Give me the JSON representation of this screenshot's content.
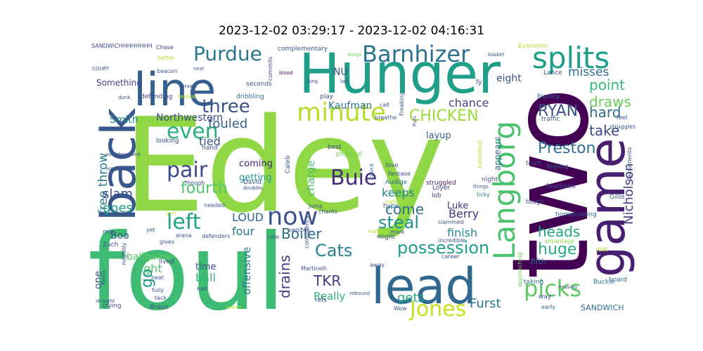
{
  "chart_data": {
    "type": "wordcloud",
    "title": "2023-12-02 03:29:17 - 2023-12-02 04:16:31",
    "background": "#ffffff",
    "words": [
      {
        "text": "Edey",
        "weight": 100,
        "color": "#8fd744"
      },
      {
        "text": "foul",
        "weight": 80,
        "color": "#3fbc73"
      },
      {
        "text": "two",
        "weight": 78,
        "color": "#440154"
      },
      {
        "text": "Hunger",
        "weight": 52,
        "color": "#1f9e89"
      },
      {
        "text": "game",
        "weight": 48,
        "color": "#481f70"
      },
      {
        "text": "lead",
        "weight": 46,
        "color": "#31688e"
      },
      {
        "text": "line",
        "weight": 44,
        "color": "#355f8d"
      },
      {
        "text": "back",
        "weight": 42,
        "color": "#39568c"
      },
      {
        "text": "Langborg",
        "weight": 34,
        "color": "#4ac16d"
      },
      {
        "text": "splits",
        "weight": 30,
        "color": "#1f9e89"
      },
      {
        "text": "minute",
        "weight": 26,
        "color": "#b5de2b"
      },
      {
        "text": "Barnhizer",
        "weight": 25,
        "color": "#2c728e"
      },
      {
        "text": "picks",
        "weight": 24,
        "color": "#5ec962"
      },
      {
        "text": "Jones",
        "weight": 24,
        "color": "#c8e020"
      },
      {
        "text": "now",
        "weight": 23,
        "color": "#3b528b"
      },
      {
        "text": "Purdue",
        "weight": 21,
        "color": "#2a788e"
      },
      {
        "text": "left",
        "weight": 21,
        "color": "#20a486"
      },
      {
        "text": "even",
        "weight": 21,
        "color": "#2ab07f"
      },
      {
        "text": "pair",
        "weight": 20,
        "color": "#3e4989"
      },
      {
        "text": "Buie",
        "weight": 20,
        "color": "#472d7b"
      },
      {
        "text": "three",
        "weight": 19,
        "color": "#3b528b"
      },
      {
        "text": "possession",
        "weight": 18,
        "color": "#1f9e89"
      },
      {
        "text": "Nicholson",
        "weight": 17,
        "color": "#433e85"
      },
      {
        "text": "free throw",
        "weight": 16,
        "color": "#287c8e"
      },
      {
        "text": "fourth",
        "weight": 16,
        "color": "#52c569"
      },
      {
        "text": "Cats",
        "weight": 16,
        "color": "#26828e"
      },
      {
        "text": "CHICKEN",
        "weight": 15,
        "color": "#9bd93c"
      },
      {
        "text": "RYAN",
        "weight": 15,
        "color": "#3b528b"
      },
      {
        "text": "Preston",
        "weight": 15,
        "color": "#2d708e"
      },
      {
        "text": "huge",
        "weight": 15,
        "color": "#25ab82"
      },
      {
        "text": "steal",
        "weight": 15,
        "color": "#21918c"
      },
      {
        "text": "TKR",
        "weight": 15,
        "color": "#443983"
      },
      {
        "text": "drains",
        "weight": 15,
        "color": "#443a83"
      },
      {
        "text": "draws",
        "weight": 15,
        "color": "#6ccd5a"
      },
      {
        "text": "point",
        "weight": 15,
        "color": "#35b779"
      },
      {
        "text": "Boiler",
        "weight": 14,
        "color": "#2f6c8e"
      },
      {
        "text": "come",
        "weight": 14,
        "color": "#2e6e8e"
      },
      {
        "text": "take",
        "weight": 14,
        "color": "#3e4a89"
      },
      {
        "text": "hard",
        "weight": 14,
        "color": "#2e6f8e"
      },
      {
        "text": "heads",
        "weight": 14,
        "color": "#21a685"
      },
      {
        "text": "go",
        "weight": 14,
        "color": "#1f968b"
      },
      {
        "text": "slam",
        "weight": 13,
        "color": "#3d4d8a"
      },
      {
        "text": "goes",
        "weight": 13,
        "color": "#1fa088"
      },
      {
        "text": "Furst",
        "weight": 13,
        "color": "#2a778e"
      },
      {
        "text": "gets",
        "weight": 13,
        "color": "#22a884"
      },
      {
        "text": "fouled",
        "weight": 13,
        "color": "#355f8d"
      },
      {
        "text": "misses",
        "weight": 13,
        "color": "#2f6b8e"
      },
      {
        "text": "charge",
        "weight": 12,
        "color": "#4ac16d"
      },
      {
        "text": "tied",
        "weight": 12,
        "color": "#3b528b"
      },
      {
        "text": "chance",
        "weight": 12,
        "color": "#3f4788"
      },
      {
        "text": "keeps",
        "weight": 12,
        "color": "#25848e"
      },
      {
        "text": "four",
        "weight": 12,
        "color": "#2a788e"
      },
      {
        "text": "LOUD",
        "weight": 12,
        "color": "#31668e"
      },
      {
        "text": "Really",
        "weight": 12,
        "color": "#2db27d"
      },
      {
        "text": "finish",
        "weight": 12,
        "color": "#238a8d"
      },
      {
        "text": "Berry",
        "weight": 12,
        "color": "#453581"
      },
      {
        "text": "right",
        "weight": 11,
        "color": "#4ec36b"
      },
      {
        "text": "ball",
        "weight": 11,
        "color": "#35b779"
      },
      {
        "text": "offensive",
        "weight": 11,
        "color": "#287d8e"
      },
      {
        "text": "eight",
        "weight": 11,
        "color": "#3b528b"
      },
      {
        "text": "NU",
        "weight": 11,
        "color": "#39568c"
      },
      {
        "text": "Kaufman",
        "weight": 11,
        "color": "#2c738e"
      },
      {
        "text": "Smith",
        "weight": 11,
        "color": "#24868e"
      },
      {
        "text": "Northwestern",
        "weight": 10,
        "color": "#3e4a89"
      },
      {
        "text": "coming",
        "weight": 10,
        "color": "#482173"
      },
      {
        "text": "getting",
        "weight": 10,
        "color": "#1e9b8a"
      },
      {
        "text": "Boo",
        "weight": 10,
        "color": "#3a548c"
      },
      {
        "text": "one",
        "weight": 10,
        "color": "#39568c"
      },
      {
        "text": "Luke",
        "weight": 10,
        "color": "#472f7d"
      },
      {
        "text": "layup",
        "weight": 10,
        "color": "#355e8d"
      },
      {
        "text": "ballgame",
        "weight": 10,
        "color": "#5ec962"
      },
      {
        "text": "time",
        "weight": 10,
        "color": "#3c4f8a"
      },
      {
        "text": "Something",
        "weight": 9,
        "color": "#404688"
      },
      {
        "text": "SANDWICH",
        "weight": 9,
        "color": "#2f6c8e"
      },
      {
        "text": "fifth",
        "weight": 9,
        "color": "#2e6e8e"
      },
      {
        "text": "appears",
        "weight": 9,
        "color": "#2d708e"
      },
      {
        "text": "one",
        "weight": 1,
        "color": "#ffffff"
      },
      {
        "text": "Lance",
        "weight": 7,
        "color": "#3f4788"
      },
      {
        "text": "Frankly",
        "weight": 7,
        "color": "#31688e"
      },
      {
        "text": "traffic",
        "weight": 7,
        "color": "#3b528b"
      },
      {
        "text": "team",
        "weight": 7,
        "color": "#3b528b"
      },
      {
        "text": "feeling",
        "weight": 7,
        "color": "#33638d"
      },
      {
        "text": "Seatbelts",
        "weight": 7,
        "color": "#3e4989"
      },
      {
        "text": "tough",
        "weight": 7,
        "color": "#3e4989"
      },
      {
        "text": "homecoming",
        "weight": 7,
        "color": "#2f6c8e"
      },
      {
        "text": "advantage",
        "weight": 6,
        "color": "#8fd744"
      },
      {
        "text": "Buckle",
        "weight": 7,
        "color": "#2d708e"
      },
      {
        "text": "board",
        "weight": 7,
        "color": "#31688e"
      },
      {
        "text": "rest",
        "weight": 7,
        "color": "#b5de2b"
      },
      {
        "text": "taking",
        "weight": 7,
        "color": "#2e6e8e"
      },
      {
        "text": "way",
        "weight": 7,
        "color": "#3b528b"
      },
      {
        "text": "early",
        "weight": 6,
        "color": "#31688e"
      },
      {
        "text": "night",
        "weight": 7,
        "color": "#3b528b"
      },
      {
        "text": "ticky",
        "weight": 6,
        "color": "#26828e"
      },
      {
        "text": "struggled",
        "weight": 7,
        "color": "#481a6c"
      },
      {
        "text": "lob",
        "weight": 7,
        "color": "#3f4788"
      },
      {
        "text": "Loyer",
        "weight": 7,
        "color": "#3f4788"
      },
      {
        "text": "fanbase",
        "weight": 6,
        "color": "#3f4788"
      },
      {
        "text": "Audige",
        "weight": 7,
        "color": "#31688e"
      },
      {
        "text": "hype",
        "weight": 7,
        "color": "#2e6e8e"
      },
      {
        "text": "native",
        "weight": 6,
        "color": "#b5de2b"
      },
      {
        "text": "mark",
        "weight": 6,
        "color": "#3b528b"
      },
      {
        "text": "knock",
        "weight": 6,
        "color": "#2e6e8e"
      },
      {
        "text": "love",
        "weight": 7,
        "color": "#3b528b"
      },
      {
        "text": "physical",
        "weight": 7,
        "color": "#6ccd5a"
      },
      {
        "text": "best",
        "weight": 7,
        "color": "#3e4989"
      },
      {
        "text": "breathe",
        "weight": 6,
        "color": "#3b528b"
      },
      {
        "text": "call",
        "weight": 6,
        "color": "#3b528b"
      },
      {
        "text": "play",
        "weight": 7,
        "color": "#3b528b"
      },
      {
        "text": "dribbling",
        "weight": 7,
        "color": "#2e6e8e"
      },
      {
        "text": "seconds",
        "weight": 7,
        "color": "#39568c"
      },
      {
        "text": "review",
        "weight": 6,
        "color": "#b5de2b"
      },
      {
        "text": "defending",
        "weight": 7,
        "color": "#3e4989"
      },
      {
        "text": "drawn",
        "weight": 5,
        "color": "#3b528b"
      },
      {
        "text": "beacon",
        "weight": 6,
        "color": "#3b528b"
      },
      {
        "text": "better",
        "weight": 6,
        "color": "#b5de2b"
      },
      {
        "text": "Chase",
        "weight": 6,
        "color": "#3f4788"
      },
      {
        "text": "SANDWICHHHHHHHH",
        "weight": 6,
        "color": "#3f4788"
      },
      {
        "text": "complementary",
        "weight": 7,
        "color": "#3b528b"
      },
      {
        "text": "commits",
        "weight": 6,
        "color": "#3e4989"
      },
      {
        "text": "blood",
        "weight": 5,
        "color": "#440154"
      },
      {
        "text": "long",
        "weight": 5,
        "color": "#3b528b"
      },
      {
        "text": "last",
        "weight": 5,
        "color": "#3b528b"
      },
      {
        "text": "snags",
        "weight": 5,
        "color": "#6ccd5a"
      },
      {
        "text": "Freaking",
        "weight": 6,
        "color": "#3b528b"
      },
      {
        "text": "Puts",
        "weight": 5,
        "color": "#3b528b"
      },
      {
        "text": "basket",
        "weight": 5,
        "color": "#3b528b"
      },
      {
        "text": "Evanston",
        "weight": 7,
        "color": "#b5de2b"
      },
      {
        "text": "Ty",
        "weight": 6,
        "color": "#3b528b"
      },
      {
        "text": "things",
        "weight": 5,
        "color": "#3b528b"
      },
      {
        "text": "basketball",
        "weight": 6,
        "color": "#b5de2b"
      },
      {
        "text": "feet",
        "weight": 6,
        "color": "#3b528b"
      },
      {
        "text": "struggles",
        "weight": 6,
        "color": "#3b528b"
      },
      {
        "text": "Sacramento",
        "weight": 6,
        "color": "#3b528b"
      },
      {
        "text": "Gillis",
        "weight": 7,
        "color": "#3b528b"
      },
      {
        "text": "approaching",
        "weight": 6,
        "color": "#6ccd5a"
      },
      {
        "text": "incredible",
        "weight": 6,
        "color": "#3b528b"
      },
      {
        "text": "slammed",
        "weight": 6,
        "color": "#3b528b"
      },
      {
        "text": "career",
        "weight": 6,
        "color": "#3b528b"
      },
      {
        "text": "might",
        "weight": 7,
        "color": "#3b528b"
      },
      {
        "text": "makes",
        "weight": 6,
        "color": "#b5de2b"
      },
      {
        "text": "away",
        "weight": 6,
        "color": "#3b528b"
      },
      {
        "text": "chants",
        "weight": 6,
        "color": "#3b528b"
      },
      {
        "text": "Five",
        "weight": 5,
        "color": "#b5de2b"
      },
      {
        "text": "Jump",
        "weight": 6,
        "color": "#3b528b"
      },
      {
        "text": "swishes",
        "weight": 6,
        "color": "#3b528b"
      },
      {
        "text": "rose",
        "weight": 6,
        "color": "#3b528b"
      },
      {
        "text": "consistency",
        "weight": 6,
        "color": "#3b528b"
      },
      {
        "text": "Martinelli",
        "weight": 6,
        "color": "#3b528b"
      },
      {
        "text": "refs",
        "weight": 7,
        "color": "#3b528b"
      },
      {
        "text": "Wow",
        "weight": 6,
        "color": "#3b528b"
      },
      {
        "text": "rebound",
        "weight": 5,
        "color": "#3b528b"
      },
      {
        "text": "Caleb",
        "weight": 7,
        "color": "#3b528b"
      },
      {
        "text": "David",
        "weight": 7,
        "color": "#3b528b"
      },
      {
        "text": "doubles",
        "weight": 5,
        "color": "#3b528b"
      },
      {
        "text": "needed",
        "weight": 6,
        "color": "#3b528b"
      },
      {
        "text": "defenders",
        "weight": 6,
        "color": "#3b528b"
      },
      {
        "text": "arena",
        "weight": 6,
        "color": "#3b528b"
      },
      {
        "text": "gym",
        "weight": 5,
        "color": "#b5de2b"
      },
      {
        "text": "though",
        "weight": 6,
        "color": "#3b528b"
      },
      {
        "text": "hand",
        "weight": 7,
        "color": "#3b528b"
      },
      {
        "text": "looking",
        "weight": 7,
        "color": "#3b528b"
      },
      {
        "text": "HALF",
        "weight": 5,
        "color": "#3b528b"
      },
      {
        "text": "outrebounded",
        "weight": 5,
        "color": "#3b528b"
      },
      {
        "text": "dunk",
        "weight": 5,
        "color": "#3b528b"
      },
      {
        "text": "next",
        "weight": 5,
        "color": "#3b528b"
      },
      {
        "text": "COURT",
        "weight": 5,
        "color": "#3b528b"
      },
      {
        "text": "lived",
        "weight": 7,
        "color": "#3b528b"
      },
      {
        "text": "mic",
        "weight": 7,
        "color": "#3b528b"
      },
      {
        "text": "Zach",
        "weight": 7,
        "color": "#3b528b"
      },
      {
        "text": "yet",
        "weight": 6,
        "color": "#3b528b"
      },
      {
        "text": "gives",
        "weight": 6,
        "color": "#3b528b"
      },
      {
        "text": "Renn",
        "weight": 6,
        "color": "#3b528b"
      },
      {
        "text": "mightily",
        "weight": 6,
        "color": "#3b528b"
      },
      {
        "text": "heat",
        "weight": 6,
        "color": "#3b528b"
      },
      {
        "text": "fully",
        "weight": 6,
        "color": "#3b528b"
      },
      {
        "text": "hell",
        "weight": 6,
        "color": "#3b528b"
      },
      {
        "text": "tack",
        "weight": 6,
        "color": "#3b528b"
      },
      {
        "text": "straight",
        "weight": 5,
        "color": "#3b528b"
      },
      {
        "text": "trying",
        "weight": 7,
        "color": "#3b528b"
      },
      {
        "text": "Braun",
        "weight": 7,
        "color": "#3b528b"
      },
      {
        "text": "watch",
        "weight": 5,
        "color": "#b5de2b"
      },
      {
        "text": "missing",
        "weight": 5,
        "color": "#3b528b"
      }
    ]
  }
}
